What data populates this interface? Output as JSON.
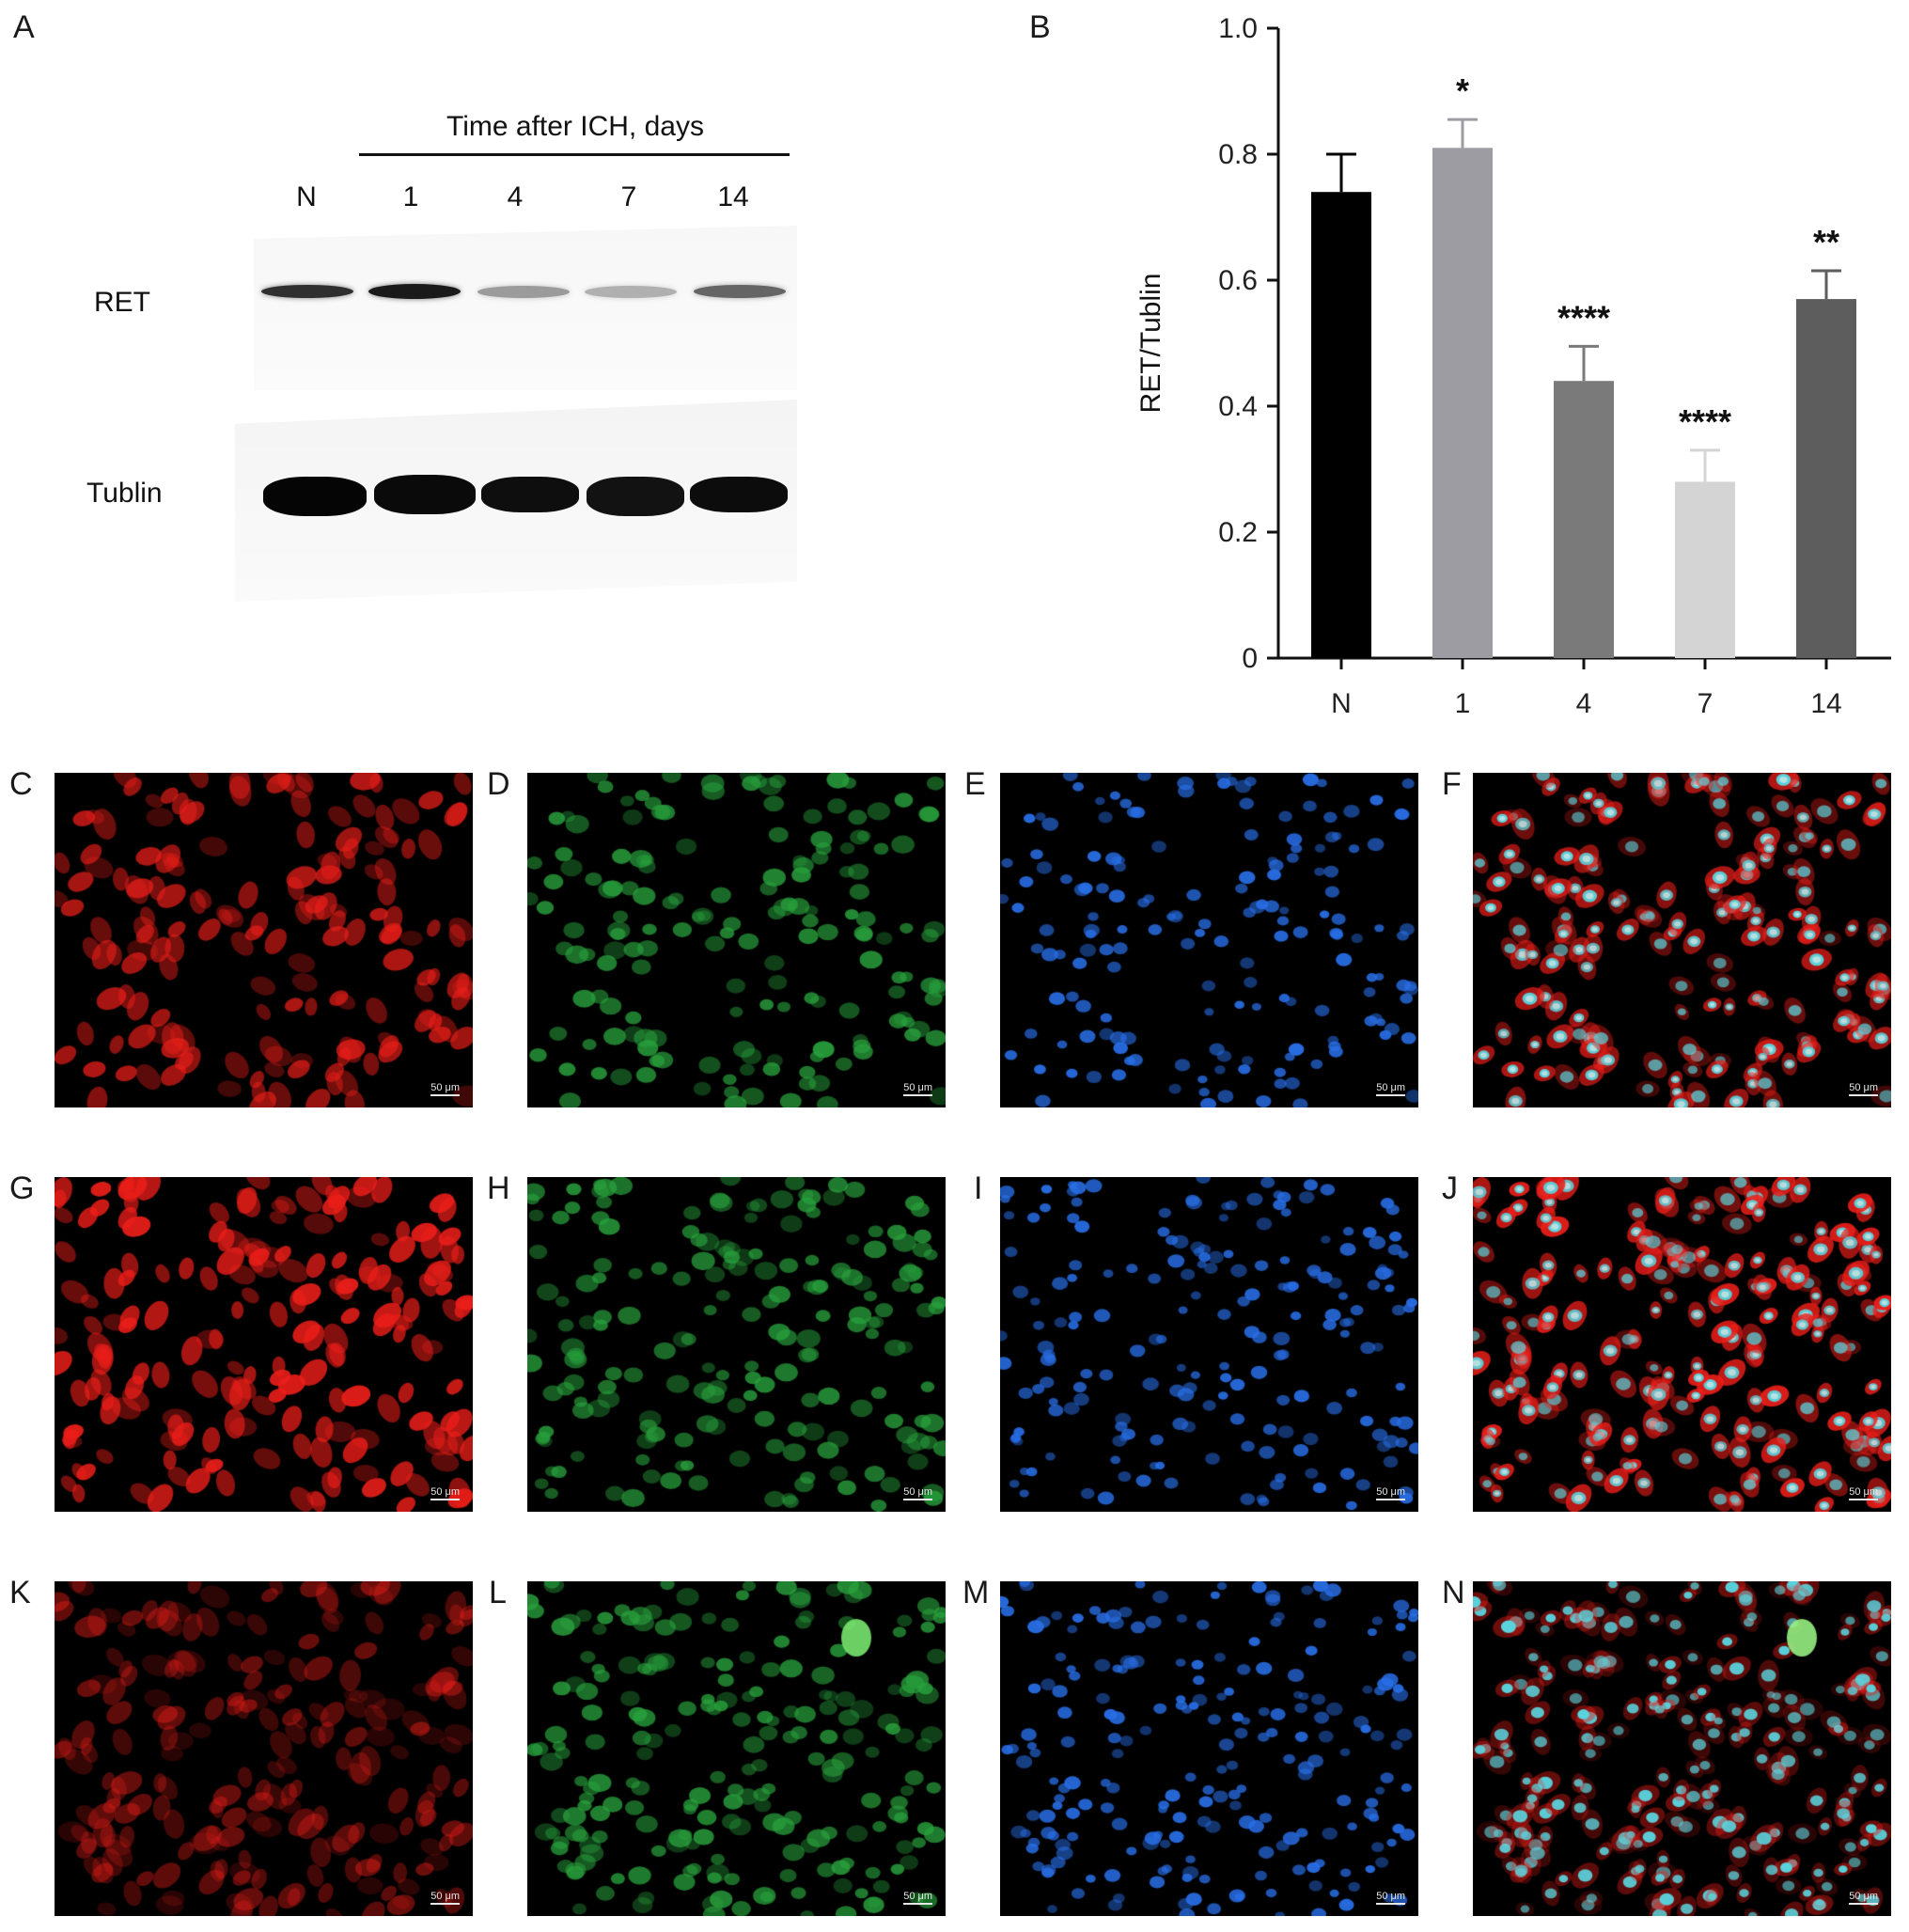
{
  "panels": {
    "A": "A",
    "B": "B",
    "C": "C",
    "D": "D",
    "E": "E",
    "F": "F",
    "G": "G",
    "H": "H",
    "I": "I",
    "J": "J",
    "K": "K",
    "L": "L",
    "M": "M",
    "N": "N"
  },
  "western_blot": {
    "header": "Time after ICH, days",
    "lanes": [
      "N",
      "1",
      "4",
      "7",
      "14"
    ],
    "rows": [
      "RET",
      "Tublin"
    ],
    "ret_band_intensity": [
      0.85,
      0.95,
      0.35,
      0.25,
      0.6
    ]
  },
  "chart_data": {
    "type": "bar",
    "categories": [
      "N",
      "1",
      "4",
      "7",
      "14"
    ],
    "values": [
      0.74,
      0.81,
      0.44,
      0.28,
      0.57
    ],
    "errors": [
      0.06,
      0.045,
      0.055,
      0.05,
      0.045
    ],
    "significance": [
      "",
      "*",
      "****",
      "****",
      "**"
    ],
    "colors": [
      "#000000",
      "#9d9ca3",
      "#7a7a7a",
      "#d4d4d4",
      "#5d5d5d"
    ],
    "ylabel": "RET/Tublin",
    "xlabel": "",
    "ylim": [
      0,
      1.0
    ],
    "yticks": [
      0,
      0.2,
      0.4,
      0.6,
      0.8,
      1.0
    ],
    "ytick_labels": [
      "0",
      "0.2",
      "0.4",
      "0.6",
      "0.8",
      "1.0"
    ],
    "grid": false,
    "legend": "none"
  },
  "micrographs": {
    "scale_label": "50 μm",
    "channels": [
      "red",
      "green",
      "blue",
      "merge",
      "red",
      "green",
      "blue",
      "merge",
      "red",
      "green",
      "blue",
      "merge"
    ],
    "red_intensity": [
      0.75,
      0.95,
      0.45
    ]
  }
}
